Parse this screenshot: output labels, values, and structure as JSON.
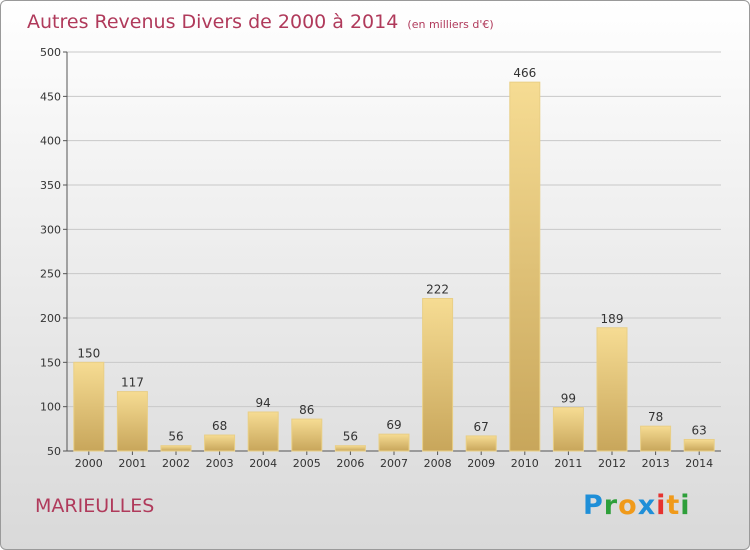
{
  "title": {
    "main": "Autres Revenus Divers de 2000 à 2014",
    "sub": "(en milliers d'€)"
  },
  "town": "MARIEULLES",
  "logo": {
    "p": "P",
    "r": "r",
    "o": "o",
    "x": "x",
    "i1": "i",
    "t": "t",
    "i2": "i"
  },
  "colors": {
    "title": "#b03a5b",
    "bar_top": "#f6dc93",
    "bar_bottom": "#c8a65b",
    "grid": "#c8c8c8"
  },
  "chart_data": {
    "type": "bar",
    "title": "Autres Revenus Divers de 2000 à 2014",
    "subtitle": "(en milliers d'€)",
    "categories": [
      "2000",
      "2001",
      "2002",
      "2003",
      "2004",
      "2005",
      "2006",
      "2007",
      "2008",
      "2009",
      "2010",
      "2011",
      "2012",
      "2013",
      "2014"
    ],
    "values": [
      150,
      117,
      56,
      68,
      94,
      86,
      56,
      69,
      222,
      67,
      466,
      99,
      189,
      78,
      63
    ],
    "ylim": [
      50,
      500
    ],
    "yticks": [
      50,
      100,
      150,
      200,
      250,
      300,
      350,
      400,
      450,
      500
    ],
    "grid": true
  }
}
